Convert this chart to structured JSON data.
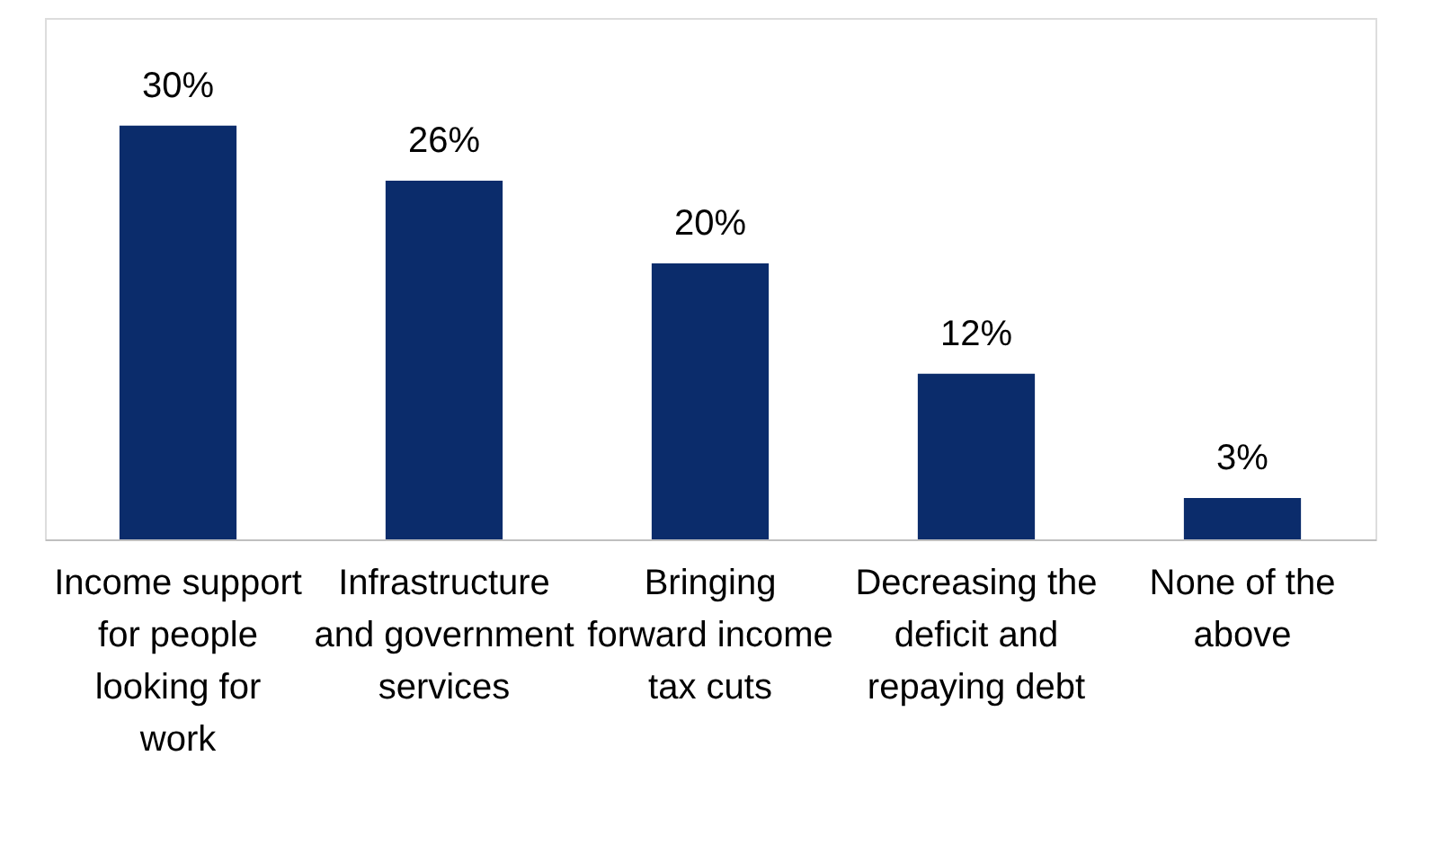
{
  "chart_data": {
    "type": "bar",
    "categories": [
      "Income support for people looking for work",
      "Infrastructure and government services",
      "Bringing forward income tax cuts",
      "Decreasing the deficit and repaying debt",
      "None of the above"
    ],
    "values": [
      30,
      26,
      20,
      12,
      3
    ],
    "value_labels": [
      "30%",
      "26%",
      "20%",
      "12%",
      "3%"
    ],
    "color": "#0b2c6b",
    "grid": false
  }
}
